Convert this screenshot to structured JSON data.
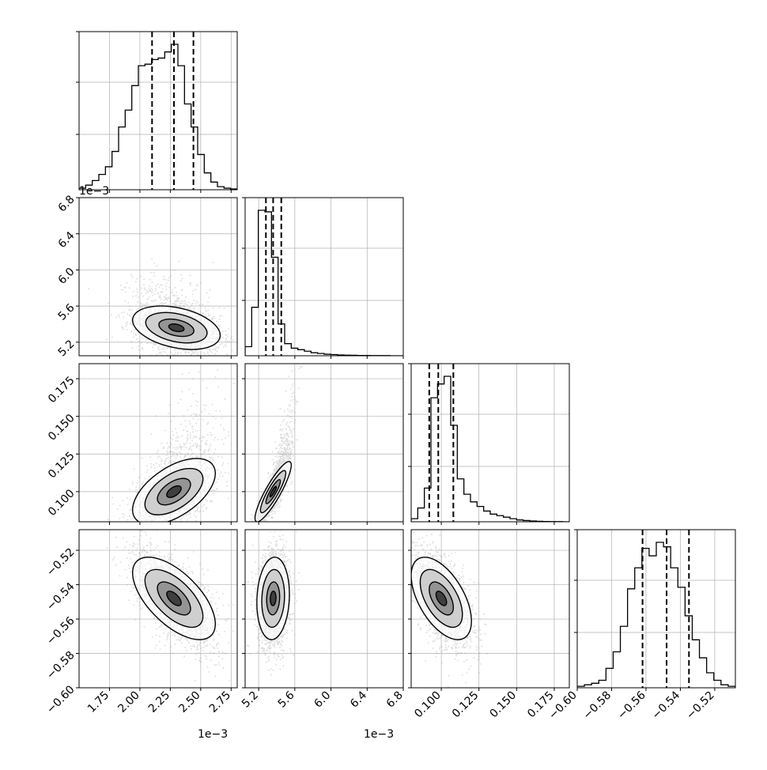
{
  "chart_data": {
    "type": "corner",
    "variables": [
      {
        "id": "p0",
        "range": [
          1.5,
          2.8
        ],
        "ticks": [
          1.75,
          2.0,
          2.25,
          2.5,
          2.75
        ],
        "tick_labels": [
          "1.75",
          "2.00",
          "2.25",
          "2.50",
          "2.75"
        ],
        "offset_text": "1e−3",
        "quantiles": [
          2.1,
          2.28,
          2.44
        ]
      },
      {
        "id": "p1",
        "range": [
          5.05,
          6.8
        ],
        "ticks": [
          5.2,
          5.6,
          6.0,
          6.4,
          6.8
        ],
        "tick_labels": [
          "5.2",
          "5.6",
          "6.0",
          "6.4",
          "6.8"
        ],
        "offset_text": "1e−3",
        "quantiles": [
          5.28,
          5.36,
          5.45
        ]
      },
      {
        "id": "p2",
        "range": [
          0.08,
          0.185
        ],
        "ticks": [
          0.1,
          0.125,
          0.15,
          0.175
        ],
        "tick_labels": [
          "0.100",
          "0.125",
          "0.150",
          "0.175"
        ],
        "offset_text": "",
        "quantiles": [
          0.092,
          0.098,
          0.108
        ]
      },
      {
        "id": "p3",
        "range": [
          -0.6,
          -0.508
        ],
        "ticks": [
          -0.6,
          -0.58,
          -0.56,
          -0.54,
          -0.52
        ],
        "tick_labels": [
          "−0.60",
          "−0.58",
          "−0.56",
          "−0.54",
          "−0.52"
        ],
        "offset_text": "",
        "quantiles": [
          -0.562,
          -0.548,
          -0.535
        ]
      }
    ],
    "histograms": [
      {
        "var": 0,
        "values": [
          0.01,
          0.03,
          0.06,
          0.1,
          0.15,
          0.25,
          0.41,
          0.52,
          0.68,
          0.81,
          0.82,
          0.85,
          0.86,
          0.9,
          0.95,
          0.81,
          0.56,
          0.41,
          0.23,
          0.11,
          0.05,
          0.02,
          0.01,
          0.005
        ]
      },
      {
        "var": 1,
        "values": [
          0.06,
          0.32,
          0.96,
          0.95,
          0.65,
          0.21,
          0.08,
          0.05,
          0.04,
          0.03,
          0.02,
          0.015,
          0.01,
          0.008,
          0.005,
          0.004,
          0.003,
          0.002,
          0.002,
          0.001,
          0.001,
          0.001,
          0.0,
          0.0
        ]
      },
      {
        "var": 2,
        "values": [
          0.02,
          0.09,
          0.22,
          0.81,
          0.9,
          0.95,
          0.63,
          0.28,
          0.18,
          0.13,
          0.1,
          0.07,
          0.05,
          0.04,
          0.03,
          0.02,
          0.012,
          0.008,
          0.005,
          0.003,
          0.002,
          0.001,
          0.001,
          0.0
        ]
      },
      {
        "var": 3,
        "values": [
          0.01,
          0.02,
          0.03,
          0.05,
          0.13,
          0.24,
          0.41,
          0.66,
          0.8,
          0.93,
          0.88,
          0.97,
          0.94,
          0.8,
          0.67,
          0.48,
          0.32,
          0.2,
          0.1,
          0.05,
          0.02,
          0.01
        ]
      }
    ],
    "pairs": [
      {
        "x": 0,
        "y": 1,
        "mean": [
          2.3,
          5.36
        ],
        "sd": [
          0.18,
          0.12
        ],
        "rho": -0.35,
        "skew_y": 0.7
      },
      {
        "x": 0,
        "y": 2,
        "mean": [
          2.28,
          0.1
        ],
        "sd": [
          0.17,
          0.011
        ],
        "rho": 0.55,
        "skew_y": 0.9
      },
      {
        "x": 1,
        "y": 2,
        "mean": [
          5.36,
          0.1
        ],
        "sd": [
          0.1,
          0.01
        ],
        "rho": 0.88,
        "skew_y": 1.0
      },
      {
        "x": 0,
        "y": 3,
        "mean": [
          2.28,
          -0.548
        ],
        "sd": [
          0.17,
          0.012
        ],
        "rho": -0.62,
        "skew_y": 0.0
      },
      {
        "x": 1,
        "y": 3,
        "mean": [
          5.36,
          -0.548
        ],
        "sd": [
          0.09,
          0.012
        ],
        "rho": 0.1,
        "skew_y": 0.0
      },
      {
        "x": 2,
        "y": 3,
        "mean": [
          0.1,
          -0.548
        ],
        "sd": [
          0.01,
          0.012
        ],
        "rho": -0.55,
        "skew_y": 0.0
      }
    ],
    "style": {
      "hist_color": "#000000",
      "point_color": "#9a9a9a",
      "grid_color": "#b0b0b0",
      "density_color": "#000000"
    },
    "grid": true
  }
}
